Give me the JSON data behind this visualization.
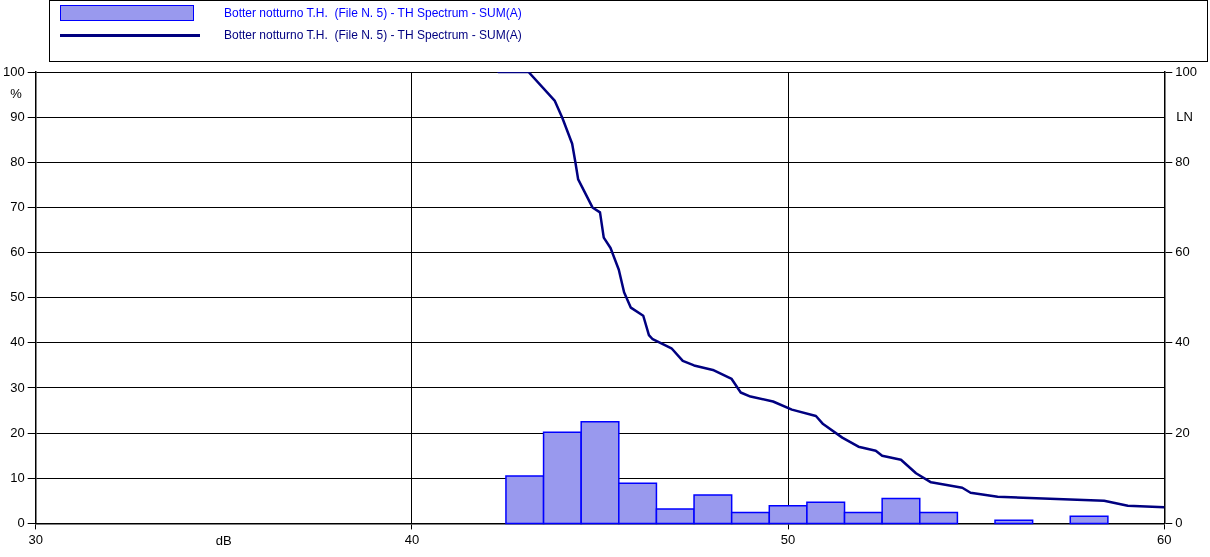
{
  "chart_data": {
    "type": "histogram",
    "xlabel": "dB",
    "ylabel": "%",
    "y2label": "LN",
    "bins": [
      42.5,
      43.5,
      44.5,
      45.5,
      46.5,
      47.5,
      48.5,
      49.5,
      50.5,
      51.5,
      52.5,
      53.5,
      54.5,
      55.5,
      56.5,
      57.5,
      58.5
    ],
    "series": [
      {
        "name": "Botter notturno T.H.  (File N. 5) - TH Spectrum - SUM(A)",
        "color": "#9999ee",
        "values": [
          10.5,
          20.2,
          22.5,
          8.9,
          3.2,
          6.3,
          2.4,
          3.9,
          4.7,
          2.4,
          5.5,
          2.4,
          0,
          0.7,
          0,
          1.6
        ]
      },
      {
        "type": "line",
        "axis": "y2",
        "name": "Botter notturno T.H.  (File N. 5) - TH Spectrum - SUM(A)",
        "color": "#000080",
        "x": [
          42.3,
          43.1,
          43.8,
          44.0,
          44.26,
          44.34,
          44.42,
          44.8,
          45.0,
          45.1,
          45.28,
          45.5,
          45.64,
          45.82,
          46.15,
          46.3,
          46.4,
          46.9,
          47.2,
          47.5,
          48.0,
          48.5,
          48.74,
          49.0,
          49.6,
          50.1,
          50.74,
          50.93,
          51.44,
          51.87,
          52.33,
          52.5,
          53.0,
          53.4,
          53.8,
          54.63,
          54.85,
          55.57,
          58.4,
          59.03,
          60
        ],
        "values": [
          100,
          100,
          93.6,
          89.8,
          84.1,
          80.3,
          76.2,
          70,
          68.9,
          63.3,
          61,
          56.2,
          51.2,
          47.8,
          46,
          41.7,
          40.8,
          38.8,
          36,
          35,
          34,
          32,
          29,
          28.1,
          27,
          25.2,
          23.8,
          22,
          19,
          17,
          16.1,
          15,
          14.1,
          11.1,
          9.1,
          7.9,
          6.8,
          5.9,
          5.0,
          3.9,
          3.6
        ]
      }
    ],
    "xlim": [
      30,
      60
    ],
    "xticks": [
      30,
      40,
      50,
      60
    ],
    "ylim": [
      0,
      100
    ],
    "yticks": [
      0,
      10,
      20,
      30,
      40,
      50,
      60,
      70,
      80,
      90,
      100
    ],
    "y2lim": [
      0,
      100
    ],
    "y2ticks": [
      0,
      20,
      40,
      60,
      80,
      100
    ],
    "grid": true,
    "legend": "top",
    "marker": "none",
    "line_style": "solid"
  }
}
